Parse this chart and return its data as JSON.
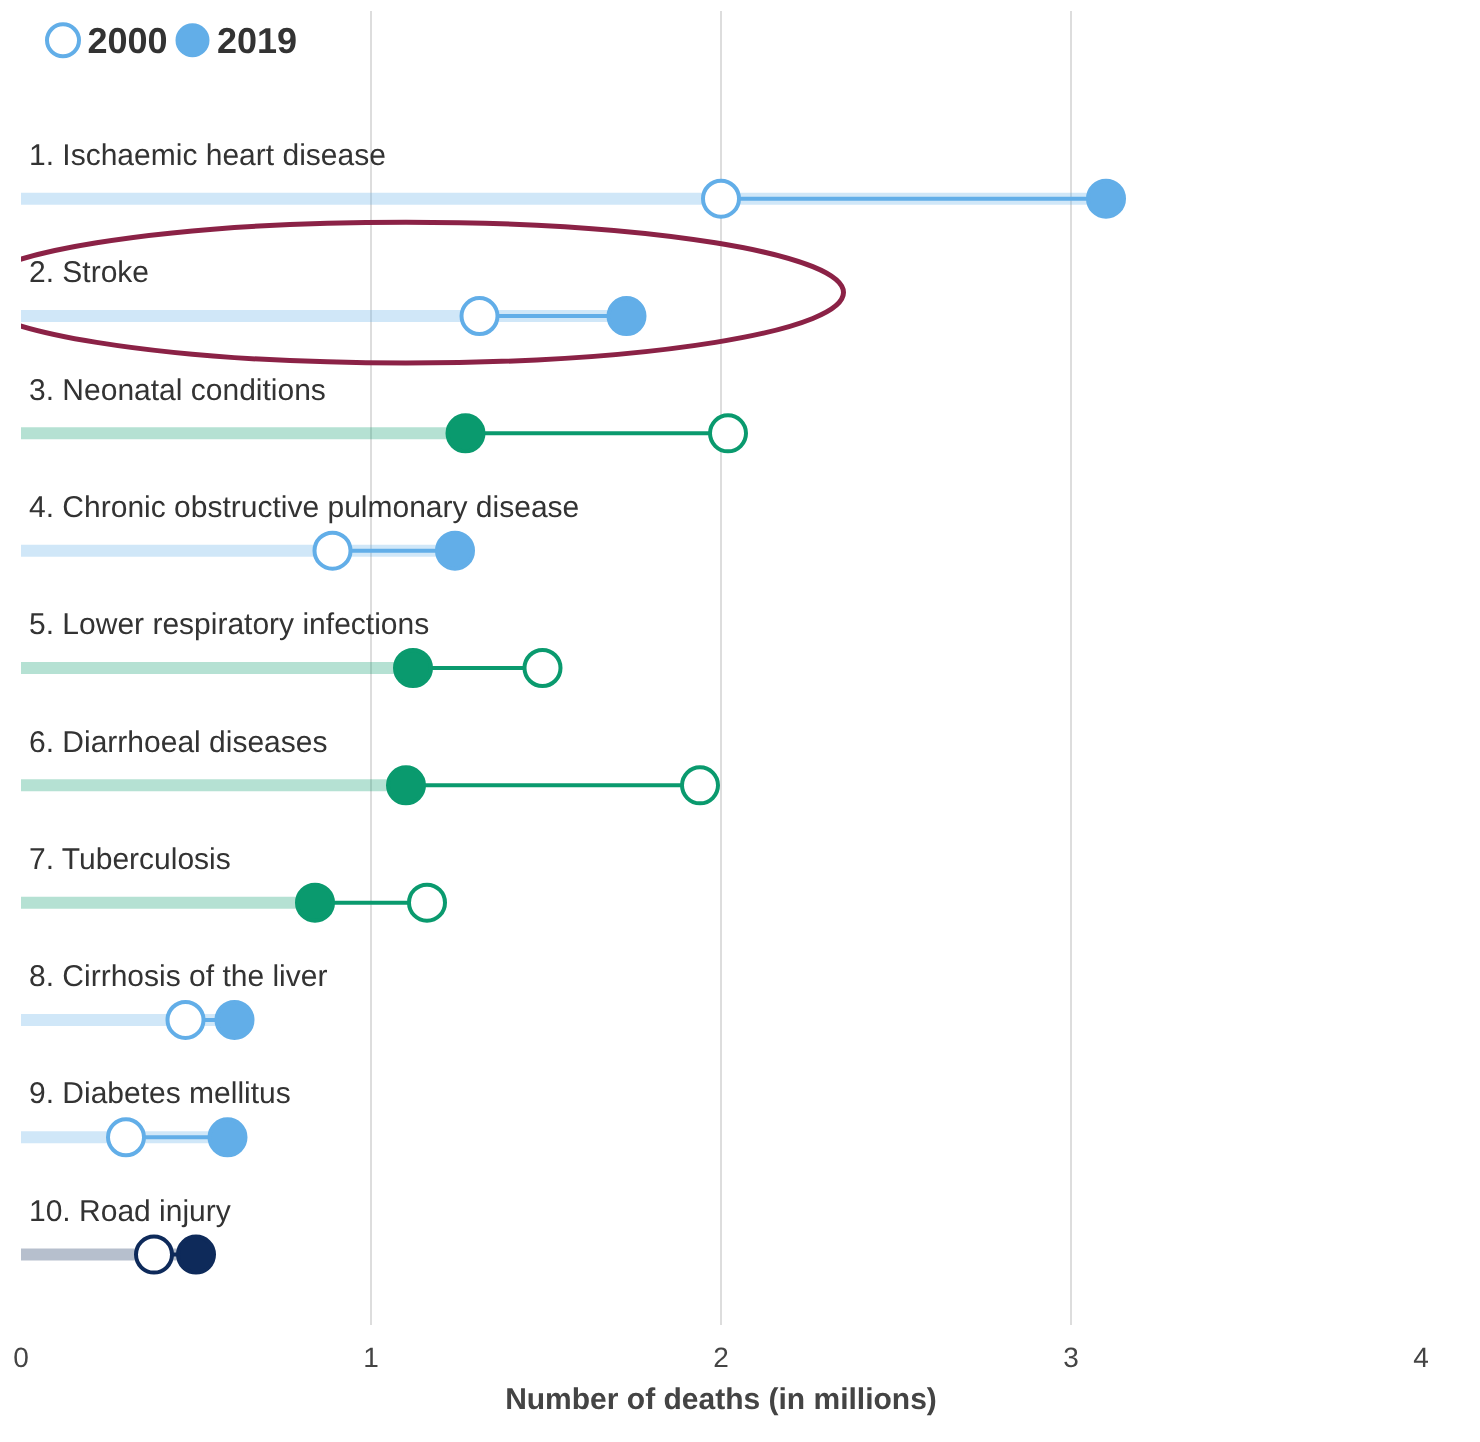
{
  "chart_data": {
    "type": "lollipop",
    "orientation": "horizontal",
    "xlabel": "Number of deaths (in millions)",
    "categories": [
      "1. Ischaemic heart disease",
      "2. Stroke",
      "3. Neonatal conditions",
      "4. Chronic obstructive pulmonary disease",
      "5. Lower respiratory infections",
      "6. Diarrhoeal diseases",
      "7. Tuberculosis",
      "8. Cirrhosis of the liver",
      "9. Diabetes mellitus",
      "10. Road injury"
    ],
    "series": [
      {
        "name": "2000",
        "color": "#62aee8",
        "colors": [
          "#62aee8",
          "#62aee8",
          "#0a9a6e",
          "#62aee8",
          "#0a9a6e",
          "#0a9a6e",
          "#0a9a6e",
          "#62aee8",
          "#62aee8",
          "#0e2a5a"
        ],
        "values": [
          2.0,
          1.31,
          2.02,
          0.89,
          1.49,
          1.94,
          1.16,
          0.47,
          0.3,
          0.38
        ]
      },
      {
        "name": "2019",
        "color": "#62aee8",
        "colors": [
          "#62aee8",
          "#62aee8",
          "#0a9a6e",
          "#62aee8",
          "#0a9a6e",
          "#0a9a6e",
          "#0a9a6e",
          "#62aee8",
          "#62aee8",
          "#0e2a5a"
        ],
        "values": [
          3.1,
          1.73,
          1.27,
          1.24,
          1.12,
          1.1,
          0.84,
          0.61,
          0.59,
          0.5
        ]
      }
    ],
    "xlim": [
      0,
      4
    ],
    "xticks": [
      0,
      1,
      2,
      3,
      4
    ],
    "grid": "x",
    "legend": "top left",
    "tick_labels": "x",
    "marker": "circle"
  }
}
